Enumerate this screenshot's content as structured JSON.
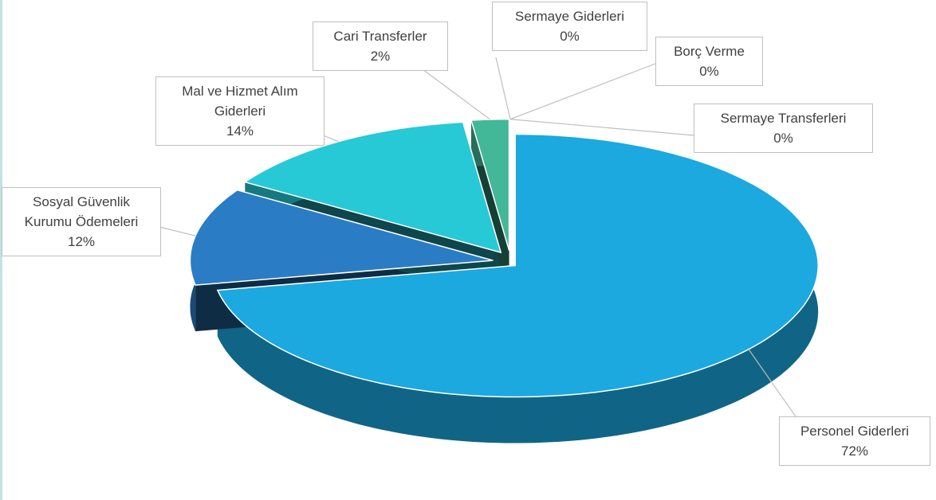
{
  "chart_data": {
    "type": "pie3d",
    "categories": [
      "Personel Giderleri",
      "Sosyal Güvenlik Kurumu Ödemeleri",
      "Mal ve Hizmet Alım Giderleri",
      "Cari Transferler",
      "Sermaye Giderleri",
      "Borç Verme",
      "Sermaye Transferleri"
    ],
    "values": [
      72,
      12,
      14,
      2,
      0,
      0,
      0
    ],
    "value_labels": [
      "72%",
      "12%",
      "14%",
      "2%",
      "0%",
      "0%",
      "0%"
    ],
    "colors": [
      "#1ba9df",
      "#2a7dc4",
      "#27c9d6",
      "#43b898",
      "#2e8b57",
      "#1f6f4a",
      "#4caf80"
    ]
  }
}
